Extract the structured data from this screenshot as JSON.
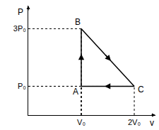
{
  "chart_data": {
    "type": "line",
    "x_label": "v",
    "y_label": "P",
    "x": [
      1,
      1,
      2,
      1
    ],
    "y": [
      1,
      3,
      1,
      1
    ],
    "point_labels": [
      "A",
      "B",
      "C",
      null
    ],
    "color": "#000000",
    "line_style": "solid",
    "xlim": [
      0,
      2.4
    ],
    "ylim": [
      0,
      3.8
    ],
    "xticks": [
      {
        "value": 1,
        "label": "V₀"
      },
      {
        "value": 2,
        "label": "2V₀"
      }
    ],
    "yticks": [
      {
        "value": 1,
        "label": "P₀"
      },
      {
        "value": 3,
        "label": "3P₀"
      }
    ],
    "grid": false
  }
}
